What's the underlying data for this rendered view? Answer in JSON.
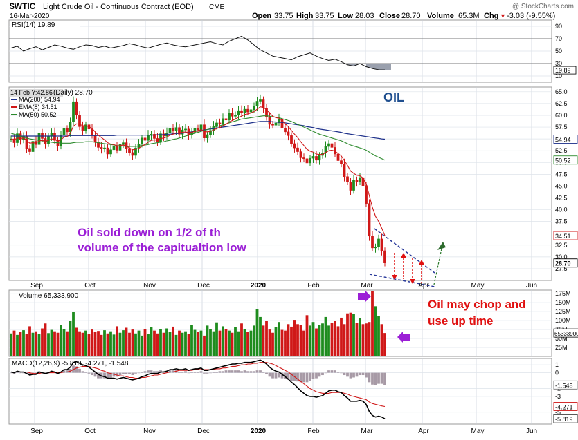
{
  "header": {
    "symbol": "$WTIC",
    "name": "Light Crude Oil - Continuous Contract (EOD)",
    "exchange": "CME",
    "date": "16-Mar-2020",
    "watermark": "@ StockCharts.com",
    "open_label": "Open",
    "open": "33.75",
    "high_label": "High",
    "high": "33.75",
    "low_label": "Low",
    "low": "28.03",
    "close_label": "Close",
    "close": "28.70",
    "volume_label": "Volume",
    "volume": "65.3M",
    "chg_label": "Chg",
    "chg": "-3.03 (-9.55%)",
    "chg_arrow": "▼"
  },
  "colors": {
    "up": "#1e8c1e",
    "down": "#d01818",
    "ema": "#d01818",
    "ma200": "#1c2f8a",
    "ma50": "#2c8a2c",
    "rsi": "#111111",
    "macd": "#000000",
    "signal": "#d01818",
    "annotation_purple": "#9b1fd6",
    "annotation_red": "#e01010",
    "oil_blue": "#1f4f8f"
  },
  "chart_data": [
    {
      "type": "line",
      "panel": "RSI",
      "title": "RSI(14) 19.89",
      "y_ticks": [
        90,
        70,
        50,
        30,
        10
      ],
      "ylim": [
        0,
        100
      ],
      "reference_lines": [
        70,
        30
      ],
      "last_value": "19.89",
      "series": [
        {
          "name": "RSI(14)",
          "values": [
            55,
            58,
            50,
            54,
            57,
            52,
            56,
            60,
            58,
            55,
            53,
            57,
            60,
            59,
            56,
            58,
            55,
            57,
            59,
            62,
            60,
            57,
            55,
            58,
            61,
            63,
            60,
            58,
            57,
            59,
            61,
            63,
            65,
            62,
            60,
            66,
            70,
            74,
            68,
            60,
            52,
            47,
            42,
            40,
            38,
            36,
            41,
            44,
            47,
            42,
            38,
            35,
            37,
            33,
            28,
            26,
            30,
            25,
            22,
            20,
            19.89
          ]
        }
      ]
    },
    {
      "type": "candlestick",
      "panel": "Price",
      "title_prefix": "(Daily) 28.70",
      "tooltip": "14 Feb Y:42.86",
      "ylim": [
        25,
        66
      ],
      "y_ticks": [
        65.0,
        62.5,
        60.0,
        57.5,
        55.0,
        52.5,
        50.0,
        47.5,
        45.0,
        42.5,
        40.0,
        37.5,
        35.0,
        32.5,
        30.0,
        27.5
      ],
      "x_labels": [
        "Sep",
        "Oct",
        "Nov",
        "Dec",
        "2020",
        "Feb",
        "Mar",
        "Apr",
        "May",
        "Jun"
      ],
      "legend": [
        {
          "name": "MA(200) 54.94",
          "key": "ma200"
        },
        {
          "name": "EMA(8) 34.51",
          "key": "ema"
        },
        {
          "name": "MA(50) 50.52",
          "key": "ma50"
        }
      ],
      "last_labels": [
        {
          "value": 54.94,
          "text": "54.94",
          "key": "ma200"
        },
        {
          "value": 50.52,
          "text": "50.52",
          "key": "ma50"
        },
        {
          "value": 34.51,
          "text": "34.51",
          "key": "ema"
        },
        {
          "value": 28.7,
          "text": "28.70",
          "key": "close"
        }
      ],
      "close": [
        55.0,
        54.2,
        56.1,
        54.8,
        55.5,
        53.0,
        52.3,
        54.5,
        53.8,
        56.2,
        55.1,
        54.0,
        55.6,
        56.3,
        54.7,
        53.5,
        55.8,
        57.2,
        56.5,
        58.6,
        62.9,
        60.1,
        57.6,
        56.8,
        58.0,
        57.1,
        55.8,
        54.3,
        53.2,
        52.9,
        53.1,
        51.8,
        52.7,
        53.5,
        52.6,
        53.8,
        54.2,
        53.0,
        52.1,
        51.5,
        53.1,
        53.9,
        55.2,
        54.7,
        55.8,
        56.0,
        55.1,
        54.4,
        56.1,
        55.6,
        56.3,
        57.2,
        56.8,
        57.4,
        56.0,
        56.9,
        57.1,
        55.8,
        56.4,
        57.3,
        56.9,
        58.0,
        55.2,
        55.9,
        56.8,
        57.7,
        58.4,
        58.2,
        59.3,
        59.0,
        60.4,
        59.8,
        60.1,
        61.0,
        60.5,
        61.3,
        60.7,
        61.2,
        62.0,
        63.0,
        63.3,
        61.5,
        59.6,
        58.1,
        57.9,
        58.4,
        59.2,
        57.3,
        56.5,
        55.7,
        54.0,
        53.1,
        52.3,
        51.0,
        50.8,
        49.9,
        50.9,
        51.3,
        50.5,
        51.5,
        52.0,
        53.4,
        54.0,
        53.2,
        51.8,
        50.4,
        49.7,
        47.0,
        45.9,
        44.1,
        46.3,
        45.9,
        46.8,
        45.1,
        41.3,
        34.4,
        31.9,
        32.1,
        33.8,
        31.3,
        28.7
      ],
      "ema8": [
        55.0,
        54.8,
        55.2,
        55.1,
        55.2,
        54.7,
        54.1,
        54.2,
        54.1,
        54.6,
        54.7,
        54.5,
        54.7,
        55.0,
        54.9,
        54.5,
        54.8,
        55.4,
        55.5,
        56.2,
        57.7,
        58.2,
        58.1,
        57.8,
        57.8,
        57.6,
        57.2,
        56.5,
        55.8,
        55.3,
        54.8,
        54.2,
        53.9,
        53.8,
        53.5,
        53.6,
        53.7,
        53.5,
        53.1,
        52.7,
        52.8,
        53.0,
        53.5,
        53.8,
        54.3,
        54.7,
        54.8,
        54.7,
        55.1,
        55.2,
        55.4,
        55.8,
        56.0,
        56.3,
        56.2,
        56.4,
        56.5,
        56.3,
        56.4,
        56.6,
        56.7,
        57.0,
        56.6,
        56.5,
        56.6,
        56.9,
        57.2,
        57.4,
        57.8,
        58.1,
        58.6,
        58.9,
        59.2,
        59.6,
        59.8,
        60.2,
        60.3,
        60.5,
        60.8,
        61.3,
        61.8,
        61.7,
        61.2,
        60.5,
        59.8,
        59.5,
        59.4,
        58.9,
        58.2,
        57.6,
        56.8,
        56.0,
        55.3,
        54.4,
        53.6,
        52.8,
        52.4,
        52.2,
        51.8,
        51.7,
        51.7,
        52.1,
        52.5,
        52.6,
        52.4,
        51.9,
        51.4,
        50.4,
        49.4,
        48.2,
        47.7,
        47.3,
        47.2,
        46.7,
        45.5,
        43.0,
        40.5,
        38.6,
        37.5,
        36.1,
        34.51
      ],
      "ma50": [
        56.2,
        56.0,
        55.8,
        55.6,
        55.4,
        55.2,
        55.0,
        54.9,
        54.8,
        54.7,
        54.6,
        54.5,
        54.4,
        54.3,
        54.2,
        54.2,
        54.1,
        54.1,
        54.1,
        54.1,
        54.2,
        54.3,
        54.3,
        54.3,
        54.4,
        54.4,
        54.4,
        54.3,
        54.2,
        54.1,
        54.0,
        53.9,
        53.8,
        53.7,
        53.6,
        53.5,
        53.5,
        53.4,
        53.4,
        53.4,
        53.4,
        53.5,
        53.6,
        53.7,
        53.8,
        54.0,
        54.1,
        54.2,
        54.3,
        54.4,
        54.6,
        54.7,
        54.9,
        55.0,
        55.2,
        55.4,
        55.6,
        55.8,
        56.0,
        56.2,
        56.4,
        56.6,
        56.8,
        57.0,
        57.2,
        57.4,
        57.6,
        57.8,
        58.0,
        58.2,
        58.4,
        58.6,
        58.8,
        59.0,
        59.2,
        59.3,
        59.4,
        59.5,
        59.6,
        59.7,
        59.8,
        59.9,
        59.9,
        59.8,
        59.7,
        59.6,
        59.5,
        59.3,
        59.1,
        58.9,
        58.7,
        58.4,
        58.1,
        57.8,
        57.5,
        57.2,
        56.9,
        56.6,
        56.3,
        56.0,
        55.8,
        55.6,
        55.4,
        55.2,
        55.0,
        54.8,
        54.6,
        54.3,
        54.0,
        53.7,
        53.5,
        53.3,
        53.1,
        52.9,
        52.6,
        52.2,
        51.8,
        51.4,
        51.1,
        50.8,
        50.52
      ],
      "ma200": [
        55.6,
        55.6,
        55.6,
        55.6,
        55.6,
        55.6,
        55.6,
        55.6,
        55.6,
        55.6,
        55.6,
        55.6,
        55.6,
        55.6,
        55.6,
        55.6,
        55.6,
        55.6,
        55.6,
        55.7,
        55.7,
        55.7,
        55.7,
        55.7,
        55.7,
        55.7,
        55.7,
        55.7,
        55.7,
        55.7,
        55.7,
        55.7,
        55.7,
        55.7,
        55.8,
        55.8,
        55.8,
        55.8,
        55.8,
        55.8,
        55.8,
        55.8,
        55.8,
        55.8,
        55.8,
        55.8,
        55.8,
        55.9,
        55.9,
        55.9,
        56.0,
        56.0,
        56.1,
        56.1,
        56.2,
        56.2,
        56.3,
        56.4,
        56.5,
        56.6,
        56.7,
        56.8,
        56.9,
        57.0,
        57.1,
        57.2,
        57.3,
        57.4,
        57.5,
        57.6,
        57.7,
        57.8,
        57.9,
        58.0,
        58.1,
        58.2,
        58.3,
        58.4,
        58.5,
        58.6,
        58.7,
        58.7,
        58.7,
        58.7,
        58.6,
        58.6,
        58.5,
        58.5,
        58.4,
        58.3,
        58.2,
        58.1,
        58.0,
        57.9,
        57.8,
        57.6,
        57.5,
        57.4,
        57.2,
        57.1,
        57.0,
        56.9,
        56.8,
        56.7,
        56.6,
        56.5,
        56.4,
        56.2,
        56.1,
        56.0,
        55.9,
        55.8,
        55.7,
        55.6,
        55.5,
        55.4,
        55.3,
        55.2,
        55.1,
        55.0,
        54.94
      ]
    },
    {
      "type": "bar",
      "panel": "Volume",
      "title": "Volume 65,333,900",
      "ylim": [
        0,
        185
      ],
      "y_ticks": [
        "175M",
        "150M",
        "125M",
        "100M",
        "75M",
        "50M",
        "25M"
      ],
      "last_label": "65333900",
      "values": [
        64,
        72,
        60,
        69,
        73,
        63,
        84,
        66,
        70,
        62,
        78,
        92,
        65,
        74,
        70,
        66,
        87,
        76,
        70,
        99,
        125,
        80,
        70,
        66,
        72,
        63,
        75,
        68,
        71,
        60,
        73,
        64,
        70,
        61,
        84,
        66,
        73,
        80,
        66,
        75,
        64,
        72,
        58,
        76,
        62,
        82,
        72,
        64,
        76,
        66,
        78,
        68,
        83,
        60,
        72,
        66,
        70,
        62,
        88,
        74,
        68,
        72,
        58,
        86,
        76,
        70,
        95,
        72,
        84,
        76,
        72,
        66,
        82,
        70,
        92,
        77,
        68,
        72,
        86,
        132,
        110,
        86,
        100,
        75,
        66,
        81,
        96,
        74,
        72,
        90,
        83,
        102,
        90,
        88,
        72,
        115,
        86,
        96,
        78,
        88,
        92,
        110,
        86,
        94,
        100,
        84,
        108,
        90,
        120,
        122,
        118,
        94,
        106,
        90,
        92,
        96,
        183,
        140,
        112,
        90,
        65.3
      ],
      "up": [
        true,
        false,
        true,
        false,
        true,
        false,
        false,
        true,
        false,
        true,
        false,
        false,
        true,
        true,
        false,
        false,
        true,
        true,
        false,
        true,
        true,
        false,
        false,
        false,
        true,
        false,
        false,
        false,
        false,
        false,
        true,
        false,
        true,
        true,
        false,
        true,
        true,
        false,
        false,
        false,
        true,
        true,
        true,
        false,
        true,
        true,
        false,
        false,
        true,
        false,
        true,
        true,
        false,
        true,
        false,
        true,
        true,
        false,
        true,
        true,
        false,
        true,
        false,
        true,
        true,
        true,
        true,
        false,
        true,
        false,
        true,
        false,
        true,
        true,
        false,
        true,
        false,
        true,
        true,
        true,
        true,
        false,
        false,
        false,
        false,
        true,
        true,
        false,
        false,
        false,
        false,
        false,
        false,
        false,
        false,
        false,
        true,
        true,
        false,
        true,
        true,
        true,
        true,
        false,
        false,
        false,
        false,
        false,
        false,
        false,
        true,
        false,
        true,
        false,
        false,
        false,
        false,
        true,
        true,
        false,
        false
      ]
    },
    {
      "type": "line",
      "panel": "MACD",
      "title": "MACD(12,26,9) -5.819, -4.271, -1.548",
      "ylim": [
        -6.5,
        1.8
      ],
      "y_ticks": [
        1,
        0,
        -2,
        -3,
        -5
      ],
      "last_labels": [
        {
          "value": -1.548,
          "text": "-1.548",
          "key": "hist"
        },
        {
          "value": -4.271,
          "text": "-4.271",
          "key": "signal"
        },
        {
          "value": -5.819,
          "text": "-5.819",
          "key": "macd"
        }
      ],
      "macd": [
        0.1,
        0.0,
        0.2,
        0.1,
        0.1,
        -0.1,
        -0.3,
        -0.2,
        -0.2,
        0.1,
        0.0,
        -0.1,
        0.0,
        0.2,
        0.1,
        -0.1,
        0.1,
        0.4,
        0.4,
        0.7,
        1.3,
        1.4,
        1.2,
        1.0,
        0.9,
        0.7,
        0.4,
        0.1,
        -0.2,
        -0.4,
        -0.5,
        -0.7,
        -0.7,
        -0.7,
        -0.8,
        -0.7,
        -0.6,
        -0.7,
        -0.8,
        -0.9,
        -0.8,
        -0.7,
        -0.5,
        -0.4,
        -0.2,
        -0.1,
        -0.1,
        -0.1,
        0.1,
        0.1,
        0.2,
        0.4,
        0.4,
        0.5,
        0.4,
        0.4,
        0.5,
        0.3,
        0.4,
        0.5,
        0.5,
        0.6,
        0.3,
        0.3,
        0.4,
        0.5,
        0.6,
        0.7,
        0.8,
        0.9,
        1.0,
        1.1,
        1.1,
        1.2,
        1.2,
        1.3,
        1.3,
        1.3,
        1.4,
        1.5,
        1.6,
        1.4,
        1.1,
        0.7,
        0.4,
        0.2,
        0.1,
        -0.2,
        -0.5,
        -0.8,
        -1.2,
        -1.5,
        -1.9,
        -2.3,
        -2.6,
        -2.9,
        -3.0,
        -3.0,
        -3.1,
        -3.0,
        -2.9,
        -2.6,
        -2.3,
        -2.2,
        -2.2,
        -2.4,
        -2.5,
        -2.9,
        -3.2,
        -3.6,
        -3.6,
        -3.6,
        -3.5,
        -3.6,
        -4.0,
        -4.9,
        -5.4,
        -5.6,
        -5.5,
        -5.6,
        -5.819
      ],
      "signal": [
        0.1,
        0.1,
        0.1,
        0.1,
        0.1,
        0.1,
        0.0,
        -0.1,
        -0.1,
        -0.1,
        0.0,
        -0.1,
        0.0,
        0.0,
        0.0,
        0.0,
        0.0,
        0.1,
        0.1,
        0.2,
        0.4,
        0.6,
        0.7,
        0.8,
        0.8,
        0.8,
        0.7,
        0.6,
        0.5,
        0.3,
        0.2,
        0.0,
        -0.1,
        -0.2,
        -0.3,
        -0.4,
        -0.4,
        -0.5,
        -0.6,
        -0.6,
        -0.7,
        -0.7,
        -0.6,
        -0.6,
        -0.5,
        -0.4,
        -0.3,
        -0.3,
        -0.2,
        -0.1,
        0.0,
        0.1,
        0.1,
        0.2,
        0.3,
        0.3,
        0.3,
        0.3,
        0.3,
        0.4,
        0.4,
        0.4,
        0.4,
        0.4,
        0.4,
        0.4,
        0.5,
        0.5,
        0.6,
        0.6,
        0.7,
        0.8,
        0.8,
        0.9,
        1.0,
        1.0,
        1.1,
        1.1,
        1.2,
        1.2,
        1.3,
        1.3,
        1.3,
        1.2,
        1.1,
        0.9,
        0.7,
        0.5,
        0.3,
        0.1,
        -0.2,
        -0.5,
        -0.8,
        -1.1,
        -1.4,
        -1.7,
        -2.0,
        -2.2,
        -2.4,
        -2.5,
        -2.6,
        -2.6,
        -2.6,
        -2.5,
        -2.5,
        -2.5,
        -2.5,
        -2.6,
        -2.7,
        -2.9,
        -3.0,
        -3.1,
        -3.2,
        -3.3,
        -3.4,
        -3.7,
        -3.9,
        -4.0,
        -4.1,
        -4.2,
        -4.271
      ]
    }
  ],
  "annotations": {
    "oil_title": "OIL",
    "left_note_line1": "Oil sold down on 1/2 of th",
    "left_note_line2": "volume of the capitualtion low",
    "right_note_line1": "Oil may chop and",
    "right_note_line2": "use up time"
  }
}
